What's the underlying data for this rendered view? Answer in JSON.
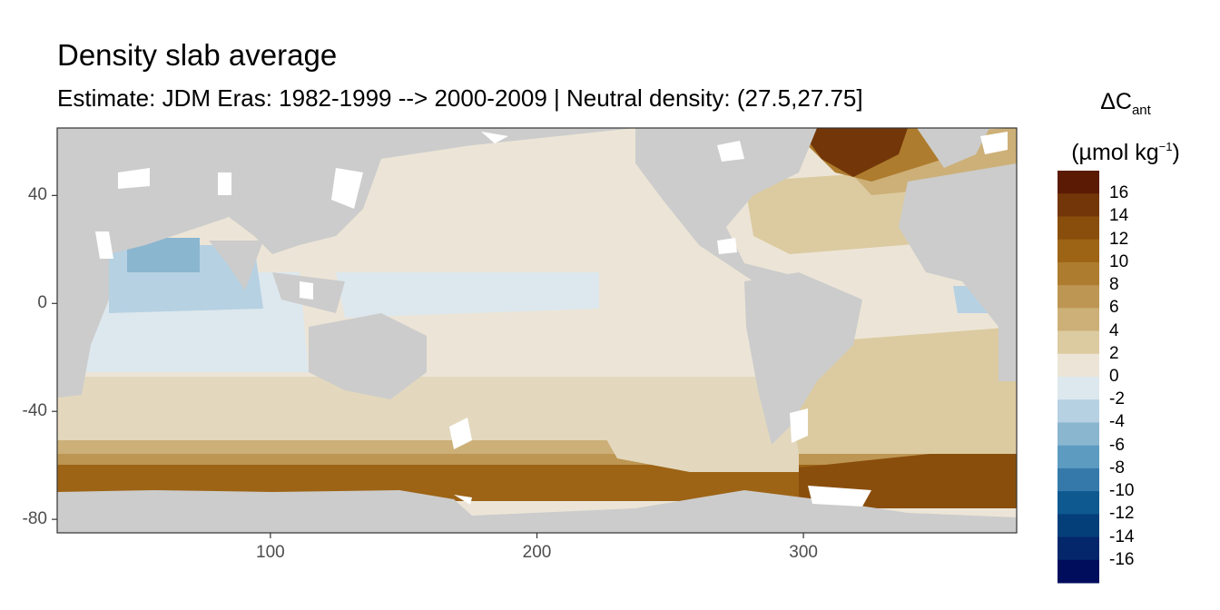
{
  "title": "Density slab average",
  "subtitle": "Estimate: JDM Eras: 1982-1999 --> 2000-2009 | Neutral density: (27.5,27.75]",
  "legend": {
    "symbol": "ΔC",
    "symbol_sub": "ant",
    "unit_open": "(µmol kg",
    "unit_sup": "−1",
    "unit_close": ")",
    "labels": [
      "16",
      "14",
      "12",
      "10",
      "8",
      "6",
      "4",
      "2",
      "0",
      "-2",
      "-4",
      "-6",
      "-8",
      "-10",
      "-12",
      "-14",
      "-16"
    ],
    "bins": [
      {
        "min": 16,
        "max": 18,
        "color": "#5a1a04"
      },
      {
        "min": 14,
        "max": 16,
        "color": "#733608"
      },
      {
        "min": 12,
        "max": 14,
        "color": "#8a4e0c"
      },
      {
        "min": 10,
        "max": 12,
        "color": "#9d6416"
      },
      {
        "min": 8,
        "max": 10,
        "color": "#ae7c2e"
      },
      {
        "min": 6,
        "max": 8,
        "color": "#bd9653"
      },
      {
        "min": 4,
        "max": 6,
        "color": "#ccb078"
      },
      {
        "min": 2,
        "max": 4,
        "color": "#dccba1"
      },
      {
        "min": 0,
        "max": 2,
        "color": "#ece5d7"
      },
      {
        "min": -2,
        "max": 0,
        "color": "#dde8ee"
      },
      {
        "min": -4,
        "max": -2,
        "color": "#b6d1e2"
      },
      {
        "min": -6,
        "max": -4,
        "color": "#8ab6d0"
      },
      {
        "min": -8,
        "max": -6,
        "color": "#5e9bc0"
      },
      {
        "min": -10,
        "max": -8,
        "color": "#3579aa"
      },
      {
        "min": -12,
        "max": -10,
        "color": "#0f5991"
      },
      {
        "min": -14,
        "max": -12,
        "color": "#053f7a"
      },
      {
        "min": -16,
        "max": -14,
        "color": "#03276a"
      },
      {
        "min": -18,
        "max": -16,
        "color": "#000c5c"
      }
    ]
  },
  "axes": {
    "x_ticks": [
      100,
      200,
      300
    ],
    "y_ticks": [
      40,
      0,
      -40,
      -80
    ],
    "x_range": [
      20,
      380
    ],
    "y_range": [
      -85,
      65
    ]
  },
  "land_color": "#cccccc"
}
